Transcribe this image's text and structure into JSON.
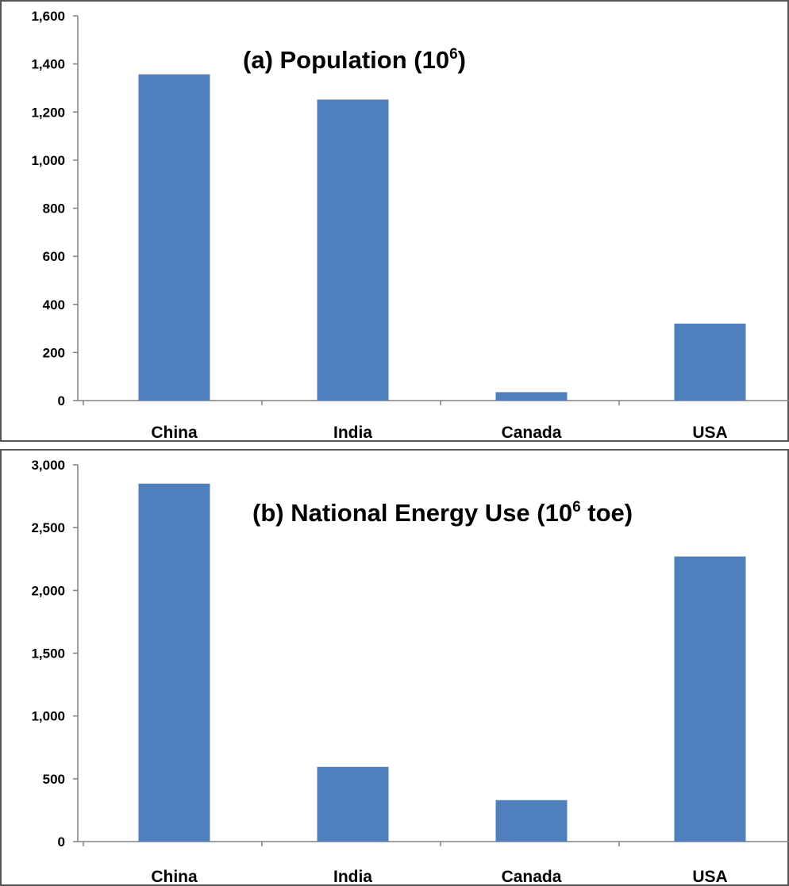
{
  "colors": {
    "bar": "#4f7fbd",
    "axis": "#808080",
    "frame": "#555555"
  },
  "chart_data": [
    {
      "type": "bar",
      "title_main": "(a) Population (10",
      "title_sup": "6",
      "title_tail": ")",
      "categories": [
        "China",
        "India",
        "Canada",
        "USA"
      ],
      "values": [
        1357,
        1252,
        35,
        320
      ],
      "ylim": [
        0,
        1600
      ],
      "yticks": [
        0,
        200,
        400,
        600,
        800,
        1000,
        1200,
        1400,
        1600
      ],
      "ytick_labels": [
        "0",
        "200",
        "400",
        "600",
        "800",
        "1,000",
        "1,200",
        "1,400",
        "1,600"
      ],
      "xlabel": "",
      "ylabel": "",
      "grid": false,
      "legend": "none"
    },
    {
      "type": "bar",
      "title_main": "(b) National Energy Use  (10",
      "title_sup": "6",
      "title_tail": " toe)",
      "categories": [
        "China",
        "India",
        "Canada",
        "USA"
      ],
      "values": [
        2850,
        595,
        330,
        2270
      ],
      "ylim": [
        0,
        3000
      ],
      "yticks": [
        0,
        500,
        1000,
        1500,
        2000,
        2500,
        3000
      ],
      "ytick_labels": [
        "0",
        "500",
        "1,000",
        "1,500",
        "2,000",
        "2,500",
        "3,000"
      ],
      "xlabel": "",
      "ylabel": "",
      "grid": false,
      "legend": "none"
    }
  ]
}
